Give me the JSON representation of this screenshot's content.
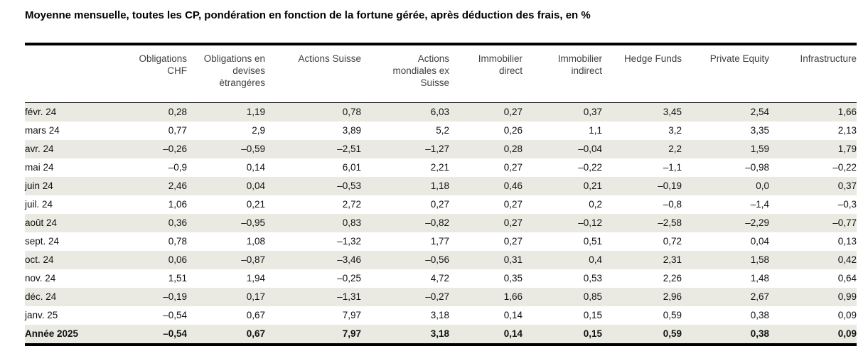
{
  "title": "Moyenne mensuelle, toutes les CP, pondération en fonction de la fortune gérée, après déduction des frais, en %",
  "colors": {
    "stripe": "#eaeae3",
    "rule": "#000000",
    "header_text": "#404040",
    "body_text": "#111111"
  },
  "chart_data": {
    "type": "table",
    "title": "Moyenne mensuelle, toutes les CP, pondération en fonction de la fortune gérée, après déduction des frais, en %",
    "unit": "%",
    "decimal_separator": ",",
    "negative_sign": "–",
    "striping": "alternate rows shaded, starting with first data row; total row shaded and bold",
    "columns": [
      "",
      "Obligations\nCHF",
      "Obligations en\ndevises\nètrangéres",
      "Actions Suisse",
      "Actions\nmondiales ex\nSuisse",
      "Immobilier\ndirect",
      "Immobilier\nindirect",
      "Hedge Funds",
      "Private Equity",
      "Infrastructure"
    ],
    "rows": [
      {
        "label": "févr. 24",
        "values": [
          "0,28",
          "1,19",
          "0,78",
          "6,03",
          "0,27",
          "0,37",
          "3,45",
          "2,54",
          "1,66"
        ]
      },
      {
        "label": "mars 24",
        "values": [
          "0,77",
          "2,9",
          "3,89",
          "5,2",
          "0,26",
          "1,1",
          "3,2",
          "3,35",
          "2,13"
        ]
      },
      {
        "label": "avr. 24",
        "values": [
          "–0,26",
          "–0,59",
          "–2,51",
          "–1,27",
          "0,28",
          "–0,04",
          "2,2",
          "1,59",
          "1,79"
        ]
      },
      {
        "label": "mai 24",
        "values": [
          "–0,9",
          "0,14",
          "6,01",
          "2,21",
          "0,27",
          "–0,22",
          "–1,1",
          "–0,98",
          "–0,22"
        ]
      },
      {
        "label": "juin 24",
        "values": [
          "2,46",
          "0,04",
          "–0,53",
          "1,18",
          "0,46",
          "0,21",
          "–0,19",
          "0,0",
          "0,37"
        ]
      },
      {
        "label": "juil. 24",
        "values": [
          "1,06",
          "0,21",
          "2,72",
          "0,27",
          "0,27",
          "0,2",
          "–0,8",
          "–1,4",
          "–0,3"
        ]
      },
      {
        "label": "août 24",
        "values": [
          "0,36",
          "–0,95",
          "0,83",
          "–0,82",
          "0,27",
          "–0,12",
          "–2,58",
          "–2,29",
          "–0,77"
        ]
      },
      {
        "label": "sept. 24",
        "values": [
          "0,78",
          "1,08",
          "–1,32",
          "1,77",
          "0,27",
          "0,51",
          "0,72",
          "0,04",
          "0,13"
        ]
      },
      {
        "label": "oct. 24",
        "values": [
          "0,06",
          "–0,87",
          "–3,46",
          "–0,56",
          "0,31",
          "0,4",
          "2,31",
          "1,58",
          "0,42"
        ]
      },
      {
        "label": "nov. 24",
        "values": [
          "1,51",
          "1,94",
          "–0,25",
          "4,72",
          "0,35",
          "0,53",
          "2,26",
          "1,48",
          "0,64"
        ]
      },
      {
        "label": "déc. 24",
        "values": [
          "–0,19",
          "0,17",
          "–1,31",
          "–0,27",
          "1,66",
          "0,85",
          "2,96",
          "2,67",
          "0,99"
        ]
      },
      {
        "label": "janv. 25",
        "values": [
          "–0,54",
          "0,67",
          "7,97",
          "3,18",
          "0,14",
          "0,15",
          "0,59",
          "0,38",
          "0,09"
        ]
      },
      {
        "label": "Année 2025",
        "values": [
          "–0,54",
          "0,67",
          "7,97",
          "3,18",
          "0,14",
          "0,15",
          "0,59",
          "0,38",
          "0,09"
        ],
        "bold": true
      }
    ]
  }
}
